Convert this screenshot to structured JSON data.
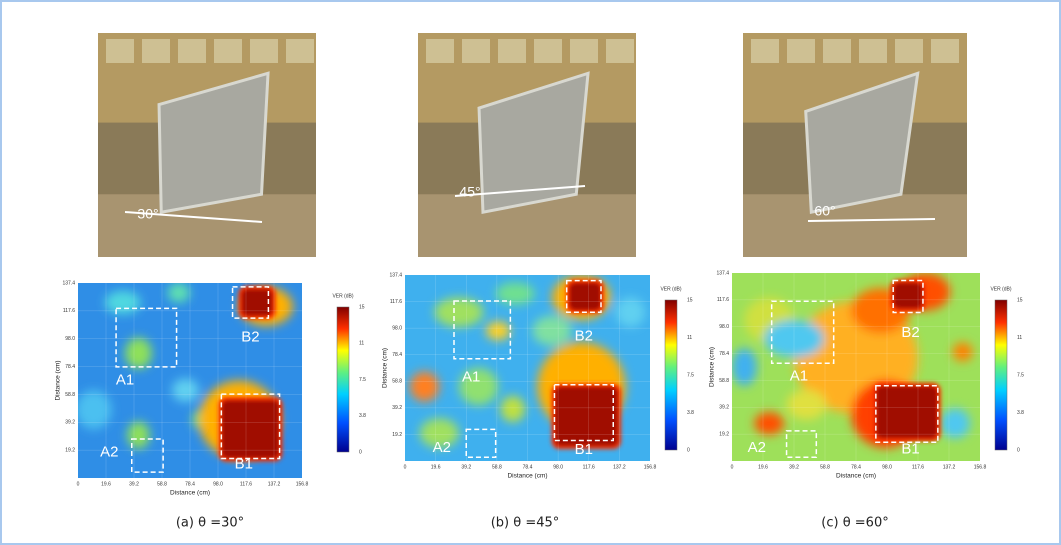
{
  "figure": {
    "axis_label": "Distance (cm)",
    "x_ticks": [
      "0",
      "19.6",
      "39.2",
      "58.8",
      "78.4",
      "98.0",
      "117.6",
      "137.2",
      "156.8"
    ],
    "y_ticks": [
      "19.2",
      "39.2",
      "58.8",
      "78.4",
      "98.0",
      "117.6",
      "137.4"
    ],
    "colorbar_title": "VER (dB)",
    "colorbar_ticks": [
      "0",
      "3.8",
      "7.5",
      "11",
      "15"
    ],
    "panels": [
      {
        "angle_label": "30°",
        "caption": "(a) θ =30°",
        "regions": [
          "A1",
          "A2",
          "B1",
          "B2"
        ]
      },
      {
        "angle_label": "45°",
        "caption": "(b) θ =45°",
        "regions": [
          "A1",
          "A2",
          "B1",
          "B2"
        ]
      },
      {
        "angle_label": "60°",
        "caption": "(c) θ =60°",
        "regions": [
          "A1",
          "A2",
          "B1",
          "B2"
        ]
      }
    ]
  }
}
